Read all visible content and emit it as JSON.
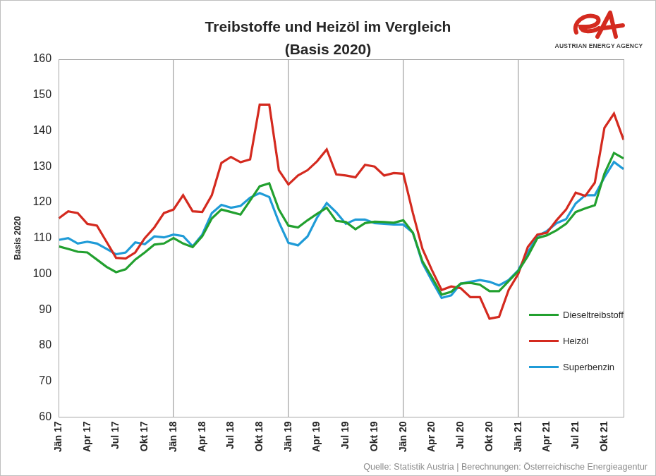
{
  "chart_data": {
    "type": "line",
    "title": "Treibstoffe und Heizöl im Vergleich",
    "subtitle": "(Basis 2020)",
    "y_label": "Basis 2020",
    "source": "Quelle: Statistik Austria | Berechnungen: Österreichische Energieagentur",
    "logo": "AUSTRIAN ENERGY AGENCY",
    "categories": [
      "Jän 17",
      null,
      null,
      "Apr 17",
      null,
      null,
      "Jul 17",
      null,
      null,
      "Okt 17",
      null,
      null,
      "Jän 18",
      null,
      null,
      "Apr 18",
      null,
      null,
      "Jul 18",
      null,
      null,
      "Okt 18",
      null,
      null,
      "Jän 19",
      null,
      null,
      "Apr 19",
      null,
      null,
      "Jul 19",
      null,
      null,
      "Okt 19",
      null,
      null,
      "Jän 20",
      null,
      null,
      "Apr 20",
      null,
      null,
      "Jul 20",
      null,
      null,
      "Okt 20",
      null,
      null,
      "Jän 21",
      null,
      null,
      "Apr 21",
      null,
      null,
      "Jul 21",
      null,
      null,
      "Okt 21",
      null,
      null
    ],
    "series": [
      {
        "name": "Dieseltreibstoff",
        "color": "#22a02f",
        "values": [
          107.7,
          107,
          106.2,
          106,
          104,
          102,
          100.5,
          101.3,
          104,
          106,
          108.2,
          108.5,
          110,
          108.5,
          107.5,
          110.5,
          115.5,
          118,
          117.3,
          116.6,
          120.5,
          124.5,
          125.3,
          118,
          113.5,
          113,
          115,
          116.8,
          118.5,
          114.8,
          114.5,
          112.5,
          114.2,
          114.6,
          114.5,
          114.3,
          115,
          111.5,
          103.5,
          99,
          94.2,
          95,
          97.3,
          97.5,
          97,
          95.2,
          95.2,
          98,
          100.8,
          105,
          110,
          110.8,
          112.2,
          114,
          117.3,
          118.3,
          119.2,
          128,
          133.8,
          132.3
        ]
      },
      {
        "name": "Heizöl",
        "color": "#d42a1f",
        "values": [
          115.5,
          117.5,
          117,
          114,
          113.5,
          109,
          104.5,
          104.3,
          106,
          110,
          113,
          117,
          118,
          122,
          117.5,
          117.3,
          122,
          131,
          132.7,
          131.2,
          132,
          147.3,
          147.3,
          129,
          125,
          127.5,
          129,
          131.5,
          134.8,
          127.8,
          127.5,
          127,
          130.5,
          130,
          127.5,
          128.2,
          128,
          117,
          107,
          101,
          95.5,
          96.5,
          96,
          93.5,
          93.5,
          87.5,
          88,
          95.5,
          100,
          107.5,
          111,
          111.5,
          115,
          118,
          122.7,
          121.8,
          125.5,
          140.8,
          144.8,
          137.5
        ]
      },
      {
        "name": "Superbenzin",
        "color": "#1f9bd7",
        "values": [
          109.5,
          110,
          108.5,
          109,
          108.5,
          107,
          105.5,
          106,
          108.8,
          108.3,
          110.5,
          110.2,
          111,
          110.6,
          107.7,
          111,
          117,
          119.3,
          118.5,
          119,
          121.3,
          122.6,
          121.5,
          114.5,
          108.7,
          108,
          110.5,
          115.8,
          119.8,
          117.2,
          114,
          115.2,
          115.2,
          114.2,
          114,
          113.8,
          113.8,
          111.5,
          103,
          98,
          93.3,
          94,
          97.3,
          97.8,
          98.3,
          97.8,
          96.8,
          98.3,
          101,
          106,
          110.6,
          112,
          114.2,
          115.3,
          119.7,
          122,
          122,
          127,
          131.3,
          129.3
        ]
      }
    ],
    "ylim": [
      60,
      160
    ],
    "yticks": [
      60,
      70,
      80,
      90,
      100,
      110,
      120,
      130,
      140,
      150,
      160
    ],
    "grid": "x",
    "legend": "lower right"
  }
}
